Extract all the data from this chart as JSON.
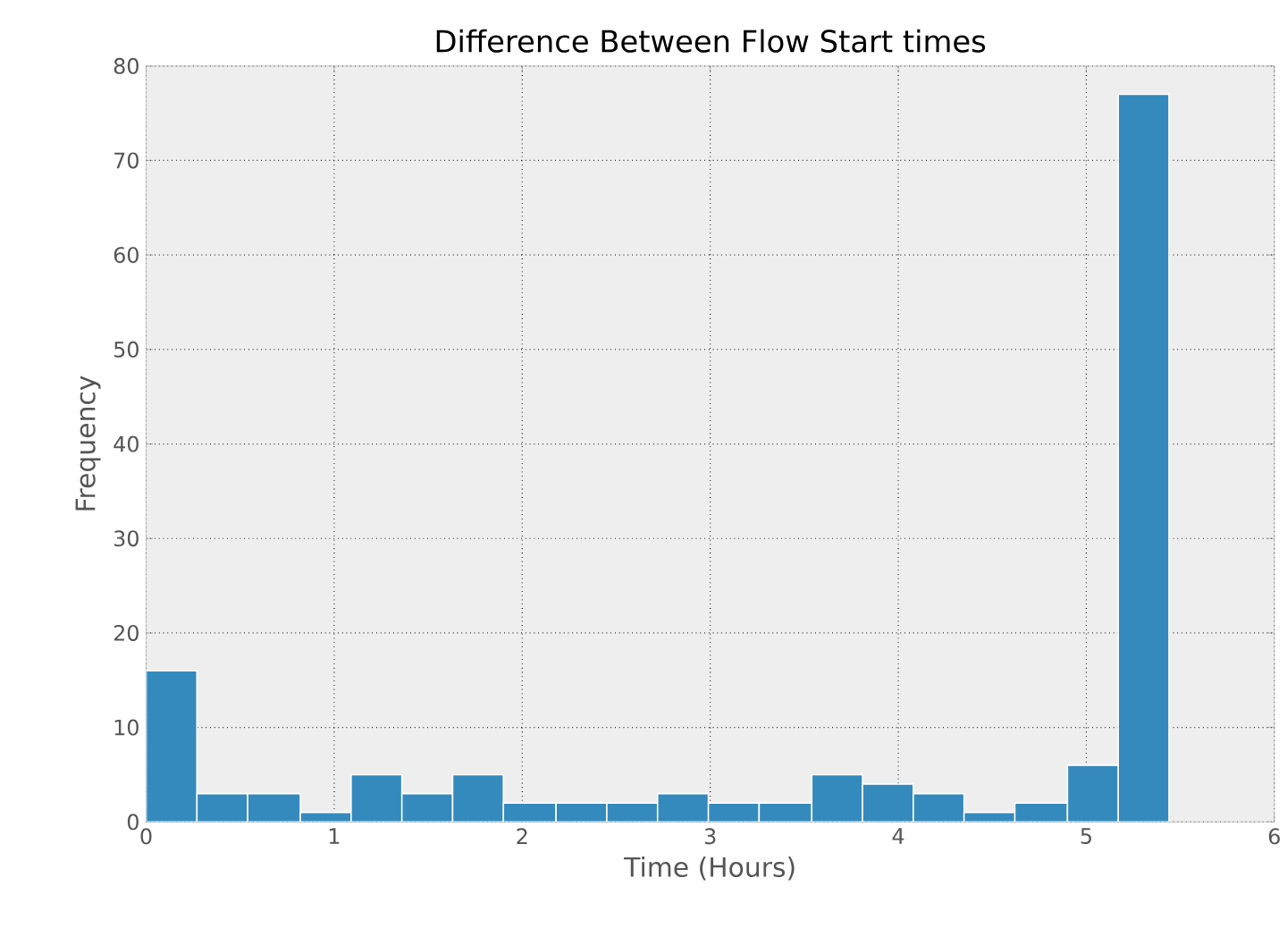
{
  "chart_data": {
    "type": "histogram",
    "title": "Difference Between Flow Start times",
    "xlabel": "Time (Hours)",
    "ylabel": "Frequency",
    "bins": [
      0,
      0.27,
      0.54,
      0.82,
      1.09,
      1.36,
      1.63,
      1.9,
      2.18,
      2.45,
      2.72,
      2.99,
      3.26,
      3.54,
      3.81,
      4.08,
      4.35,
      4.62,
      4.9,
      5.17,
      5.44
    ],
    "values": [
      16,
      3,
      3,
      1,
      5,
      3,
      5,
      2,
      2,
      2,
      3,
      2,
      2,
      5,
      4,
      3,
      1,
      2,
      6,
      77
    ],
    "color": "#348abd",
    "xlim": [
      0,
      6
    ],
    "ylim": [
      0,
      80
    ],
    "xticks": [
      0,
      1,
      2,
      3,
      4,
      5,
      6
    ],
    "yticks": [
      0,
      10,
      20,
      30,
      40,
      50,
      60,
      70,
      80
    ],
    "grid": true
  }
}
